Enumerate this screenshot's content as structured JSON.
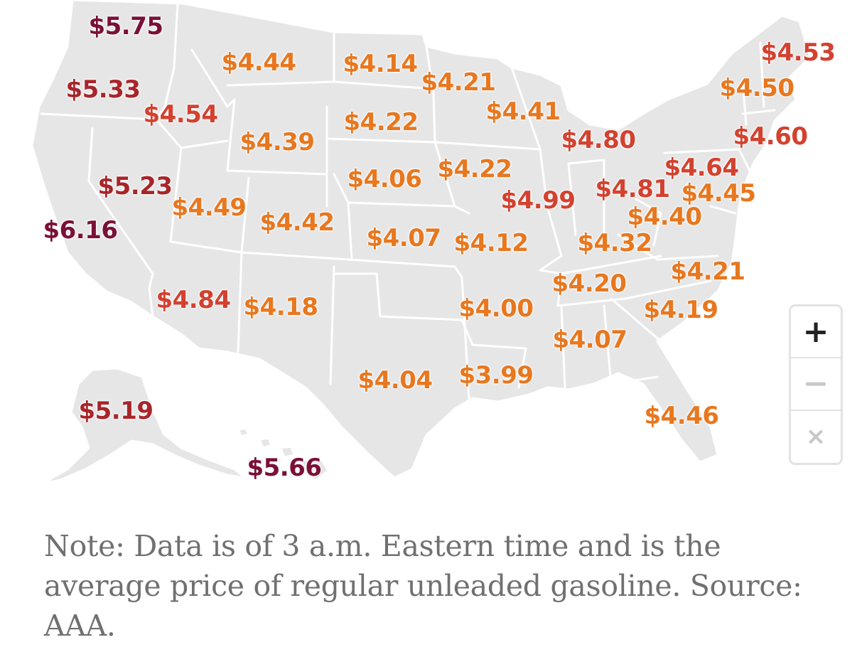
{
  "colors": {
    "land": "#e6e6e6",
    "border": "#ffffff",
    "tier_lowest": "#e8771e",
    "tier_low": "#e15b2a",
    "tier_mid": "#d3412f",
    "tier_high": "#a8252a",
    "tier_highest": "#7a1038",
    "note_text": "#707070"
  },
  "state_prices": [
    {
      "state": "WA",
      "label": "$5.75",
      "value": 5.75,
      "color": "#7a1038"
    },
    {
      "state": "OR",
      "label": "$5.33",
      "value": 5.33,
      "color": "#a8252a"
    },
    {
      "state": "ID",
      "label": "$4.54",
      "value": 4.54,
      "color": "#d3412f"
    },
    {
      "state": "MT",
      "label": "$4.44",
      "value": 4.44,
      "color": "#e8771e"
    },
    {
      "state": "ND",
      "label": "$4.14",
      "value": 4.14,
      "color": "#e8771e"
    },
    {
      "state": "MN",
      "label": "$4.21",
      "value": 4.21,
      "color": "#e8771e"
    },
    {
      "state": "SD",
      "label": "$4.22",
      "value": 4.22,
      "color": "#e8771e"
    },
    {
      "state": "WI",
      "label": "$4.41",
      "value": 4.41,
      "color": "#e8771e"
    },
    {
      "state": "WY",
      "label": "$4.39",
      "value": 4.39,
      "color": "#e8771e"
    },
    {
      "state": "MI",
      "label": "$4.80",
      "value": 4.8,
      "color": "#d3412f"
    },
    {
      "state": "NV",
      "label": "$5.23",
      "value": 5.23,
      "color": "#a8252a"
    },
    {
      "state": "UT",
      "label": "$4.49",
      "value": 4.49,
      "color": "#e8771e"
    },
    {
      "state": "NE",
      "label": "$4.06",
      "value": 4.06,
      "color": "#e8771e"
    },
    {
      "state": "IA",
      "label": "$4.22",
      "value": 4.22,
      "color": "#e8771e"
    },
    {
      "state": "IL",
      "label": "$4.99",
      "value": 4.99,
      "color": "#d3412f"
    },
    {
      "state": "IN",
      "label": "$4.81",
      "value": 4.81,
      "color": "#d3412f"
    },
    {
      "state": "OH",
      "label": "$4.64",
      "value": 4.64,
      "color": "#d3412f"
    },
    {
      "state": "PA",
      "label": "$4.45",
      "value": 4.45,
      "color": "#e8771e"
    },
    {
      "state": "CA",
      "label": "$6.16",
      "value": 6.16,
      "color": "#7a1038"
    },
    {
      "state": "CO",
      "label": "$4.42",
      "value": 4.42,
      "color": "#e8771e"
    },
    {
      "state": "KS",
      "label": "$4.07",
      "value": 4.07,
      "color": "#e8771e"
    },
    {
      "state": "MO",
      "label": "$4.12",
      "value": 4.12,
      "color": "#e8771e"
    },
    {
      "state": "WV",
      "label": "$4.40",
      "value": 4.4,
      "color": "#e8771e"
    },
    {
      "state": "KY",
      "label": "$4.32",
      "value": 4.32,
      "color": "#e8771e"
    },
    {
      "state": "TN",
      "label": "$4.20",
      "value": 4.2,
      "color": "#e8771e"
    },
    {
      "state": "VA",
      "label": "$4.21",
      "value": 4.21,
      "color": "#e8771e"
    },
    {
      "state": "AZ",
      "label": "$4.84",
      "value": 4.84,
      "color": "#d3412f"
    },
    {
      "state": "NM",
      "label": "$4.18",
      "value": 4.18,
      "color": "#e8771e"
    },
    {
      "state": "AR",
      "label": "$4.00",
      "value": 4.0,
      "color": "#e8771e"
    },
    {
      "state": "NC",
      "label": "$4.19",
      "value": 4.19,
      "color": "#e8771e"
    },
    {
      "state": "AL",
      "label": "$4.07",
      "value": 4.07,
      "color": "#e8771e"
    },
    {
      "state": "TX",
      "label": "$4.04",
      "value": 4.04,
      "color": "#e8771e"
    },
    {
      "state": "LA",
      "label": "$3.99",
      "value": 3.99,
      "color": "#e8771e"
    },
    {
      "state": "FL",
      "label": "$4.46",
      "value": 4.46,
      "color": "#e8771e"
    },
    {
      "state": "ME",
      "label": "$4.53",
      "value": 4.53,
      "color": "#d3412f"
    },
    {
      "state": "NH",
      "label": "$4.50",
      "value": 4.5,
      "color": "#e8771e"
    },
    {
      "state": "CT",
      "label": "$4.60",
      "value": 4.6,
      "color": "#d3412f"
    },
    {
      "state": "AK",
      "label": "$5.19",
      "value": 5.19,
      "color": "#a8252a"
    },
    {
      "state": "HI",
      "label": "$5.66",
      "value": 5.66,
      "color": "#7a1038"
    }
  ],
  "zoom_controls": {
    "zoom_in": "+",
    "zoom_out": "−",
    "reset": "×"
  },
  "note": "Note: Data is of 3 a.m. Eastern time and is the average price of regular unleaded gasoline. Source: AAA."
}
